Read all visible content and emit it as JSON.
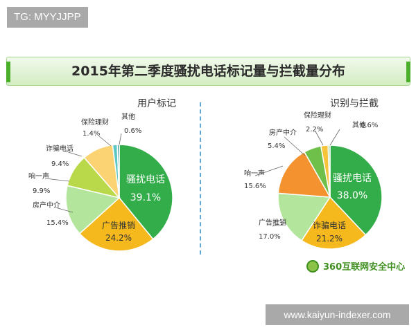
{
  "watermarks": {
    "top": "TG: MYYJJPP",
    "bottom": "www.kaiyun-indexer.com"
  },
  "page_title": "2015年第二季度骚扰电话标记量与拦截量分布",
  "logo_text": "360互联网安全中心",
  "chart_data": [
    {
      "type": "pie",
      "title": "用户标记",
      "slices": [
        {
          "label": "骚扰电话",
          "value": 39.1,
          "value_text": "39.1%",
          "color": "#33ad4a"
        },
        {
          "label": "广告推销",
          "value": 24.2,
          "value_text": "24.2%",
          "color": "#f5b91e"
        },
        {
          "label": "房产中介",
          "value": 15.4,
          "value_text": "15.4%",
          "color": "#b3e69c"
        },
        {
          "label": "响一声",
          "value": 9.9,
          "value_text": "9.9%",
          "color": "#b9d94a"
        },
        {
          "label": "诈骗电话",
          "value": 9.4,
          "value_text": "9.4%",
          "color": "#fbd372"
        },
        {
          "label": "保险理财",
          "value": 1.4,
          "value_text": "1.4%",
          "color": "#5cc7c4"
        },
        {
          "label": "其他",
          "value": 0.6,
          "value_text": "0.6%",
          "color": "#2a9a98"
        }
      ]
    },
    {
      "type": "pie",
      "title": "识别与拦截",
      "slices": [
        {
          "label": "骚扰电话",
          "value": 38.0,
          "value_text": "38.0%",
          "color": "#33ad4a"
        },
        {
          "label": "诈骗电话",
          "value": 21.2,
          "value_text": "21.2%",
          "color": "#f5b91e"
        },
        {
          "label": "广告推销",
          "value": 17.0,
          "value_text": "17.0%",
          "color": "#b3e69c"
        },
        {
          "label": "响一声",
          "value": 15.6,
          "value_text": "15.6%",
          "color": "#f3922e"
        },
        {
          "label": "房产中介",
          "value": 5.4,
          "value_text": "5.4%",
          "color": "#6fc04a"
        },
        {
          "label": "保险理财",
          "value": 2.2,
          "value_text": "2.2%",
          "color": "#f6c33b"
        },
        {
          "label": "其他",
          "value": 0.6,
          "value_text": "0.6%",
          "color": "#8fd18a"
        }
      ]
    }
  ]
}
